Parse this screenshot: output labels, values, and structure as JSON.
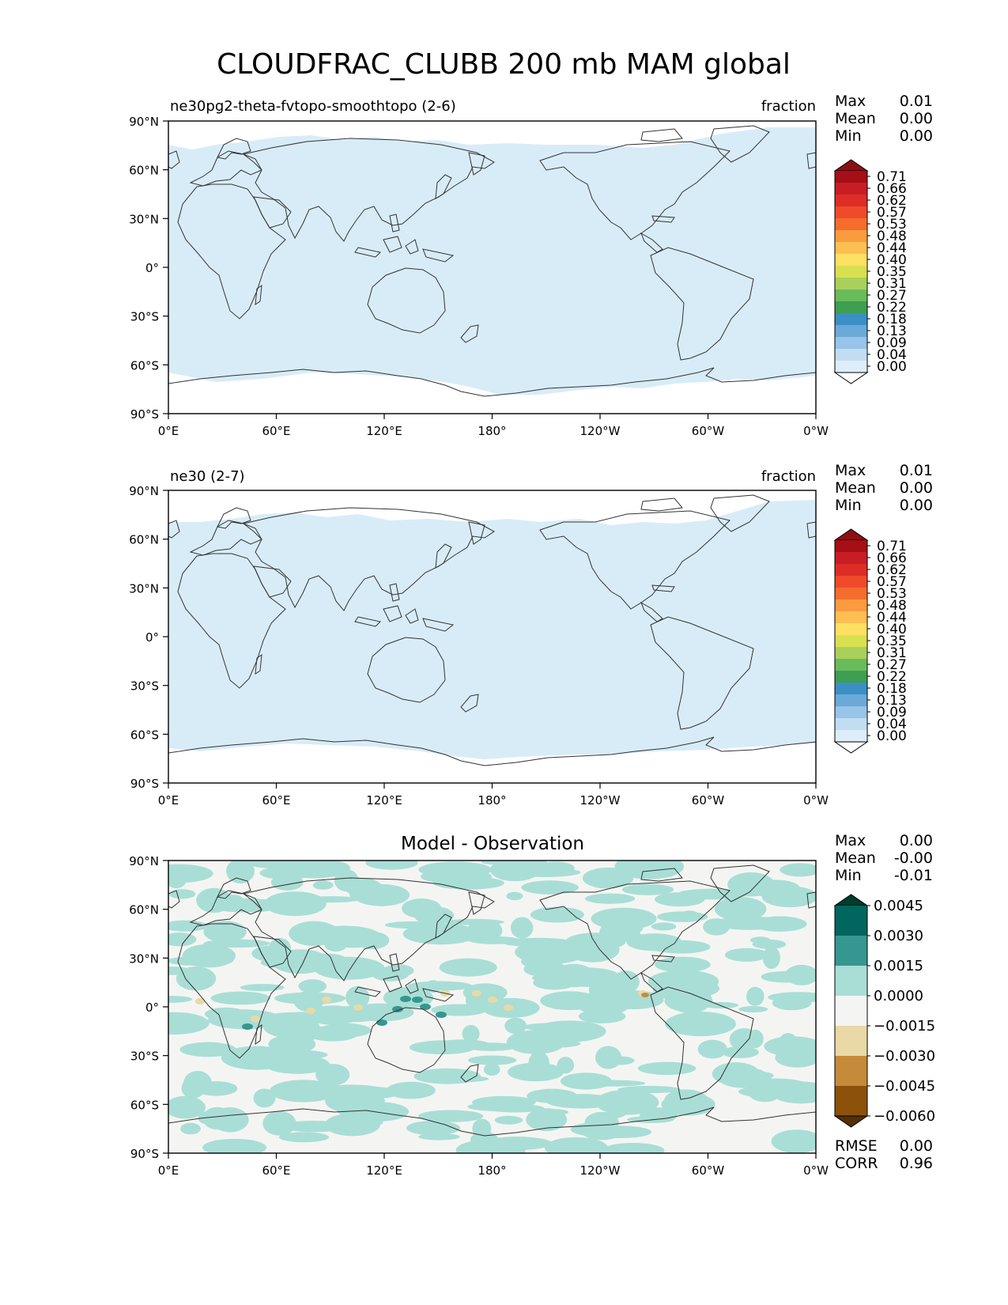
{
  "figure_title": "CLOUDFRAC_CLUBB 200 mb MAM global",
  "lon_ticks": [
    "0°E",
    "60°E",
    "120°E",
    "180°",
    "120°W",
    "60°W",
    "0°W"
  ],
  "lat_ticks": [
    "90°N",
    "60°N",
    "30°N",
    "0°",
    "30°S",
    "60°S",
    "90°S"
  ],
  "stat_labels": {
    "max": "Max",
    "mean": "Mean",
    "min": "Min",
    "rmse": "RMSE",
    "corr": "CORR"
  },
  "panels": [
    {
      "title_left": "ne30pg2-theta-fvtopo-smoothtopo (2-6)",
      "title_right": "fraction",
      "stats": {
        "max": "0.01",
        "mean": "0.00",
        "min": "0.00"
      }
    },
    {
      "title_left": "ne30 (2-7)",
      "title_right": "fraction",
      "stats": {
        "max": "0.01",
        "mean": "0.00",
        "min": "0.00"
      }
    },
    {
      "title_center": "Model - Observation",
      "stats": {
        "max": "0.00",
        "mean": "-0.00",
        "min": "-0.01"
      },
      "rmse": "0.00",
      "corr": "0.96"
    }
  ],
  "colorbar_main": {
    "labels": [
      "0.71",
      "0.66",
      "0.62",
      "0.57",
      "0.53",
      "0.48",
      "0.44",
      "0.40",
      "0.35",
      "0.31",
      "0.27",
      "0.22",
      "0.18",
      "0.13",
      "0.09",
      "0.04",
      "0.00"
    ],
    "colors_top_to_bottom": [
      "#a50f15",
      "#c81d25",
      "#de2d26",
      "#ef4a2a",
      "#f46d2c",
      "#fb9b40",
      "#fdbf52",
      "#fee062",
      "#d8e050",
      "#a9d05a",
      "#6abb5b",
      "#3e9e52",
      "#3c8fc4",
      "#6aa9d8",
      "#97c4e8",
      "#c2ddf2",
      "#ddeefa"
    ],
    "under_color": "#ffffff",
    "over_color": "#8b1014"
  },
  "colorbar_diff": {
    "labels": [
      "0.0045",
      "0.0030",
      "0.0015",
      "0.0000",
      "−0.0015",
      "−0.0030",
      "−0.0045",
      "−0.0060"
    ],
    "colors_top_to_bottom": [
      "#01665e",
      "#35978f",
      "#a9ded6",
      "#f4f5f3",
      "#e9d9a7",
      "#c58b3a",
      "#8c510a"
    ],
    "over_color": "#003c30",
    "under_color": "#543005"
  },
  "map_colors": {
    "model_fill": "#d8ecf8",
    "diff_background": "#f4f5f3",
    "diff_positive": "#a9ded6",
    "diff_strong_positive": "#35978f",
    "diff_negative": "#e9d9a7",
    "diff_strong_negative": "#c58b3a",
    "coast": "#333333"
  }
}
